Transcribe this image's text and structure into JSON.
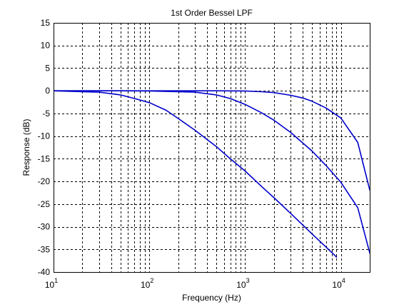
{
  "chart_data": {
    "type": "line",
    "title": "1st Order Bessel LPF",
    "xlabel": "Frequency (Hz)",
    "ylabel": "Response (dB)",
    "xscale": "log",
    "xlim": [
      10,
      20000
    ],
    "ylim": [
      -40,
      15
    ],
    "grid": true,
    "grid_style": "dashed",
    "line_color": "#0000cc",
    "y_ticks": [
      15,
      10,
      5,
      0,
      -5,
      -10,
      -15,
      -20,
      -25,
      -30,
      -35,
      -40
    ],
    "y_tick_labels": [
      "15",
      "10",
      "5",
      "0",
      "-5",
      "-10",
      "-15",
      "-20",
      "-25",
      "-30",
      "-35",
      "-40"
    ],
    "x_ticks": [
      10,
      100,
      1000,
      10000
    ],
    "x_tick_labels": [
      {
        "base": "10",
        "exp": "1"
      },
      {
        "base": "10",
        "exp": "2"
      },
      {
        "base": "10",
        "exp": "3"
      },
      {
        "base": "10",
        "exp": "4"
      }
    ],
    "series": [
      {
        "x": [
          10,
          20,
          30,
          50,
          70,
          100,
          150,
          200,
          300,
          500,
          700,
          1000,
          1500,
          2000,
          3000,
          5000,
          7000,
          9000
        ],
        "y": [
          0,
          -0.2,
          -0.3,
          -0.9,
          -1.7,
          -2.6,
          -4.3,
          -6.1,
          -8.7,
          -12.3,
          -15.0,
          -17.7,
          -21.2,
          -23.6,
          -27.1,
          -31.6,
          -34.5,
          -36.7
        ]
      },
      {
        "x": [
          10,
          20,
          50,
          100,
          200,
          300,
          500,
          700,
          1000,
          1500,
          2000,
          3000,
          5000,
          7000,
          10000,
          15000,
          20000
        ],
        "y": [
          0,
          0,
          0,
          -0.04,
          -0.2,
          -0.3,
          -0.9,
          -1.7,
          -3.0,
          -4.9,
          -6.5,
          -9.2,
          -13.3,
          -16.5,
          -20.2,
          -25.8,
          -35.8
        ]
      },
      {
        "x": [
          10,
          100,
          500,
          1000,
          1500,
          2000,
          3000,
          4000,
          5000,
          7000,
          10000,
          15000,
          20000
        ],
        "y": [
          0,
          0,
          0,
          -0.04,
          -0.2,
          -0.4,
          -1.0,
          -1.6,
          -2.3,
          -3.8,
          -6.0,
          -11.4,
          -21.9
        ]
      }
    ]
  }
}
